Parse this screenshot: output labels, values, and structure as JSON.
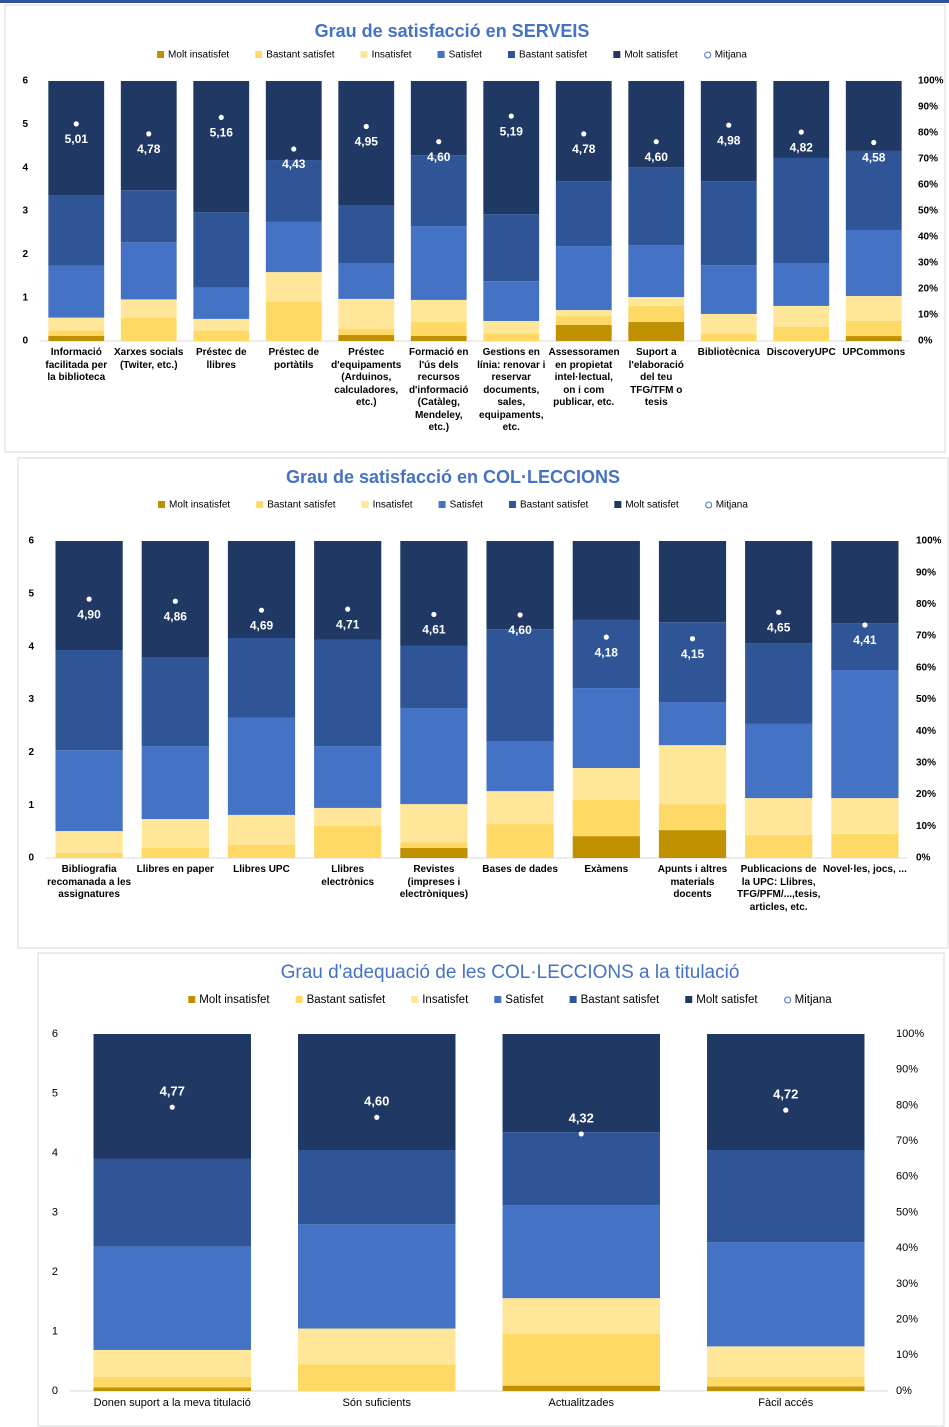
{
  "chart_data": [
    {
      "type": "bar",
      "stacked": true,
      "title": "Grau de satisfacció en SERVEIS",
      "categories": [
        "Informació facilitada per la biblioteca",
        "Xarxes socials (Twiter, etc.)",
        "Préstec de llibres",
        "Préstec de portàtils",
        "Préstec d'equipaments (Arduinos, calculadores, etc.)",
        "Formació en l'ús dels recursos d'informació (Catàleg, Mendeley, etc.)",
        "Gestions en línia: renovar i reservar documents, sales, equipaments, etc.",
        "Assessorament en propietat intel·lectual, on i com publicar, etc.",
        "Suport a l'elaboració del teu TFG/TFM o tesis",
        "Bibliotècnica",
        "DiscoveryUPC",
        "UPCommons"
      ],
      "series": [
        {
          "name": "Molt insatisfet",
          "color": "#bf9000",
          "axis": "y2",
          "values": [
            2,
            0,
            0,
            0,
            2.3,
            2,
            0,
            6.2,
            7.3,
            0,
            0,
            1.9
          ]
        },
        {
          "name": "Bastant satisfet",
          "color": "#ffd966",
          "axis": "y2",
          "values": [
            2,
            9,
            4,
            15,
            2.3,
            5.3,
            3,
            3.4,
            6.2,
            2.7,
            5.4,
            5.8
          ]
        },
        {
          "name": "Insatisfet",
          "color": "#ffe699",
          "axis": "y2",
          "values": [
            5,
            7,
            4.5,
            11.5,
            11.6,
            8.5,
            4.7,
            2.3,
            3.4,
            7.7,
            8.1,
            9.6
          ]
        },
        {
          "name": "Satisfet",
          "color": "#4472c4",
          "axis": "y2",
          "values": [
            20,
            22,
            12,
            19.3,
            13.8,
            28.4,
            15.3,
            24.6,
            20,
            18.8,
            16.5,
            25.4
          ]
        },
        {
          "name": "Bastant satisfet",
          "color": "#2f5597",
          "axis": "y2",
          "values": [
            27,
            20,
            29,
            23.8,
            22.3,
            27.3,
            25.8,
            25,
            30,
            32.3,
            40.4,
            30.4
          ]
        },
        {
          "name": "Molt satisfet",
          "color": "#203864",
          "axis": "y2",
          "values": [
            44,
            42,
            50.5,
            30.4,
            47.7,
            28.5,
            51.2,
            38.5,
            33.1,
            38.5,
            29.6,
            26.9
          ]
        },
        {
          "name": "Mitjana",
          "type": "scatter",
          "color": "#ffffff",
          "values": [
            5.01,
            4.78,
            5.16,
            4.43,
            4.95,
            4.6,
            5.19,
            4.78,
            4.6,
            4.98,
            4.82,
            4.58
          ],
          "value_labels": [
            "5,01",
            "4,78",
            "5,16",
            "4,43",
            "4,95",
            "4,60",
            "5,19",
            "4,78",
            "4,60",
            "4,98",
            "4,82",
            "4,58"
          ]
        }
      ],
      "ylim": [
        0,
        6
      ],
      "yticks": [
        0,
        1,
        2,
        3,
        4,
        5,
        6
      ],
      "y2lim": [
        0,
        100
      ],
      "y2ticks": [
        {
          "value": 0,
          "label": "0%"
        },
        {
          "value": 10,
          "label": "10%"
        },
        {
          "value": 20,
          "label": "20%"
        },
        {
          "value": 30,
          "label": "30%"
        },
        {
          "value": 40,
          "label": "40%"
        },
        {
          "value": 50,
          "label": "50%"
        },
        {
          "value": 60,
          "label": "60%"
        },
        {
          "value": 70,
          "label": "70%"
        },
        {
          "value": 80,
          "label": "80%"
        },
        {
          "value": 90,
          "label": "90%"
        },
        {
          "value": 100,
          "label": "100%"
        }
      ],
      "legend": "top"
    },
    {
      "type": "bar",
      "stacked": true,
      "title": "Grau de satisfacció en COL·LECCIONS",
      "categories": [
        "Bibliografia recomanada a les assignatures",
        "Llibres en paper",
        "Llibres UPC",
        "Llibres electrònics",
        "Revistes (impreses i electròniques)",
        "Bases de dades",
        "Exàmens",
        "Apunts i altres materials docents",
        "Publicacions de la UPC: Llibres, TFG/PFM/...,tesis, articles, etc.",
        "Novel·les, jocs, ..."
      ],
      "series": [
        {
          "name": "Molt insatisfet",
          "color": "#bf9000",
          "axis": "y2",
          "values": [
            0,
            0,
            0,
            0,
            3.2,
            0,
            6.9,
            8.8,
            0,
            0
          ]
        },
        {
          "name": "Bastant satisfet",
          "color": "#ffd966",
          "axis": "y2",
          "values": [
            1.6,
            3.2,
            4.1,
            10.1,
            1.8,
            10.7,
            11.4,
            8.2,
            7.3,
            7.6
          ]
        },
        {
          "name": "Insatisfet",
          "color": "#ffe699",
          "axis": "y2",
          "values": [
            6.9,
            9.1,
            9.5,
            5.7,
            12,
            10.4,
            10.1,
            18.6,
            11.6,
            11.3
          ]
        },
        {
          "name": "Satisfet",
          "color": "#4472c4",
          "axis": "y2",
          "values": [
            25.5,
            23,
            30.6,
            19.5,
            30.3,
            15.8,
            25.2,
            13.6,
            23.4,
            40.4
          ]
        },
        {
          "name": "Bastant satisfet",
          "color": "#2f5597",
          "axis": "y2",
          "values": [
            31.6,
            28.1,
            25.2,
            33.5,
            19.6,
            35.3,
            21.5,
            25.2,
            25.5,
            14.8
          ]
        },
        {
          "name": "Molt satisfet",
          "color": "#203864",
          "axis": "y2",
          "values": [
            34.4,
            36.6,
            30.6,
            31.2,
            33.1,
            27.8,
            24.9,
            25.6,
            32.2,
            25.9
          ]
        },
        {
          "name": "Mitjana",
          "type": "scatter",
          "color": "#ffffff",
          "values": [
            4.9,
            4.86,
            4.69,
            4.71,
            4.61,
            4.6,
            4.18,
            4.15,
            4.65,
            4.41
          ],
          "value_labels": [
            "4,90",
            "4,86",
            "4,69",
            "4,71",
            "4,61",
            "4,60",
            "4,18",
            "4,15",
            "4,65",
            "4,41"
          ]
        }
      ],
      "ylim": [
        0,
        6
      ],
      "yticks": [
        0,
        1,
        2,
        3,
        4,
        5,
        6
      ],
      "y2lim": [
        0,
        100
      ],
      "y2ticks": [
        {
          "value": 0,
          "label": "0%"
        },
        {
          "value": 10,
          "label": "10%"
        },
        {
          "value": 20,
          "label": "20%"
        },
        {
          "value": 30,
          "label": "30%"
        },
        {
          "value": 40,
          "label": "40%"
        },
        {
          "value": 50,
          "label": "50%"
        },
        {
          "value": 60,
          "label": "60%"
        },
        {
          "value": 70,
          "label": "70%"
        },
        {
          "value": 80,
          "label": "80%"
        },
        {
          "value": 90,
          "label": "90%"
        },
        {
          "value": 100,
          "label": "100%"
        }
      ],
      "legend": "top"
    },
    {
      "type": "bar",
      "stacked": true,
      "title": "Grau d'adequació de les COL·LECCIONS a la titulació",
      "categories": [
        "Donen suport a la meva titulació",
        "Són suficients",
        "Actualitzades",
        "Fàcil accés"
      ],
      "series": [
        {
          "name": "Molt insatisfet",
          "color": "#bf9000",
          "axis": "y2",
          "values": [
            1,
            0,
            1.5,
            1.3
          ]
        },
        {
          "name": "Bastant satisfet",
          "color": "#ffd966",
          "axis": "y2",
          "values": [
            3,
            7.5,
            14.5,
            2.7
          ]
        },
        {
          "name": "Insatisfet",
          "color": "#ffe699",
          "axis": "y2",
          "values": [
            7.5,
            10,
            10,
            8.5
          ]
        },
        {
          "name": "Satisfet",
          "color": "#4472c4",
          "axis": "y2",
          "values": [
            29,
            29.2,
            26,
            29.2
          ]
        },
        {
          "name": "Bastant satisfet",
          "color": "#2f5597",
          "axis": "y2",
          "values": [
            24.5,
            20.8,
            20.5,
            25.8
          ]
        },
        {
          "name": "Molt satisfet",
          "color": "#203864",
          "axis": "y2",
          "values": [
            35,
            32.5,
            27.5,
            32.5
          ]
        },
        {
          "name": "Mitjana",
          "type": "scatter",
          "color": "#ffffff",
          "values": [
            4.77,
            4.6,
            4.32,
            4.72
          ],
          "value_labels": [
            "4,77",
            "4,60",
            "4,32",
            "4,72"
          ]
        }
      ],
      "ylim": [
        0,
        6
      ],
      "yticks": [
        0,
        1,
        2,
        3,
        4,
        5,
        6
      ],
      "y2lim": [
        0,
        100
      ],
      "y2ticks": [
        {
          "value": 0,
          "label": "0%"
        },
        {
          "value": 10,
          "label": "10%"
        },
        {
          "value": 20,
          "label": "20%"
        },
        {
          "value": 30,
          "label": "30%"
        },
        {
          "value": 40,
          "label": "40%"
        },
        {
          "value": 50,
          "label": "50%"
        },
        {
          "value": 60,
          "label": "60%"
        },
        {
          "value": 70,
          "label": "70%"
        },
        {
          "value": 80,
          "label": "80%"
        },
        {
          "value": 90,
          "label": "90%"
        },
        {
          "value": 100,
          "label": "100%"
        }
      ],
      "legend": "top"
    }
  ]
}
